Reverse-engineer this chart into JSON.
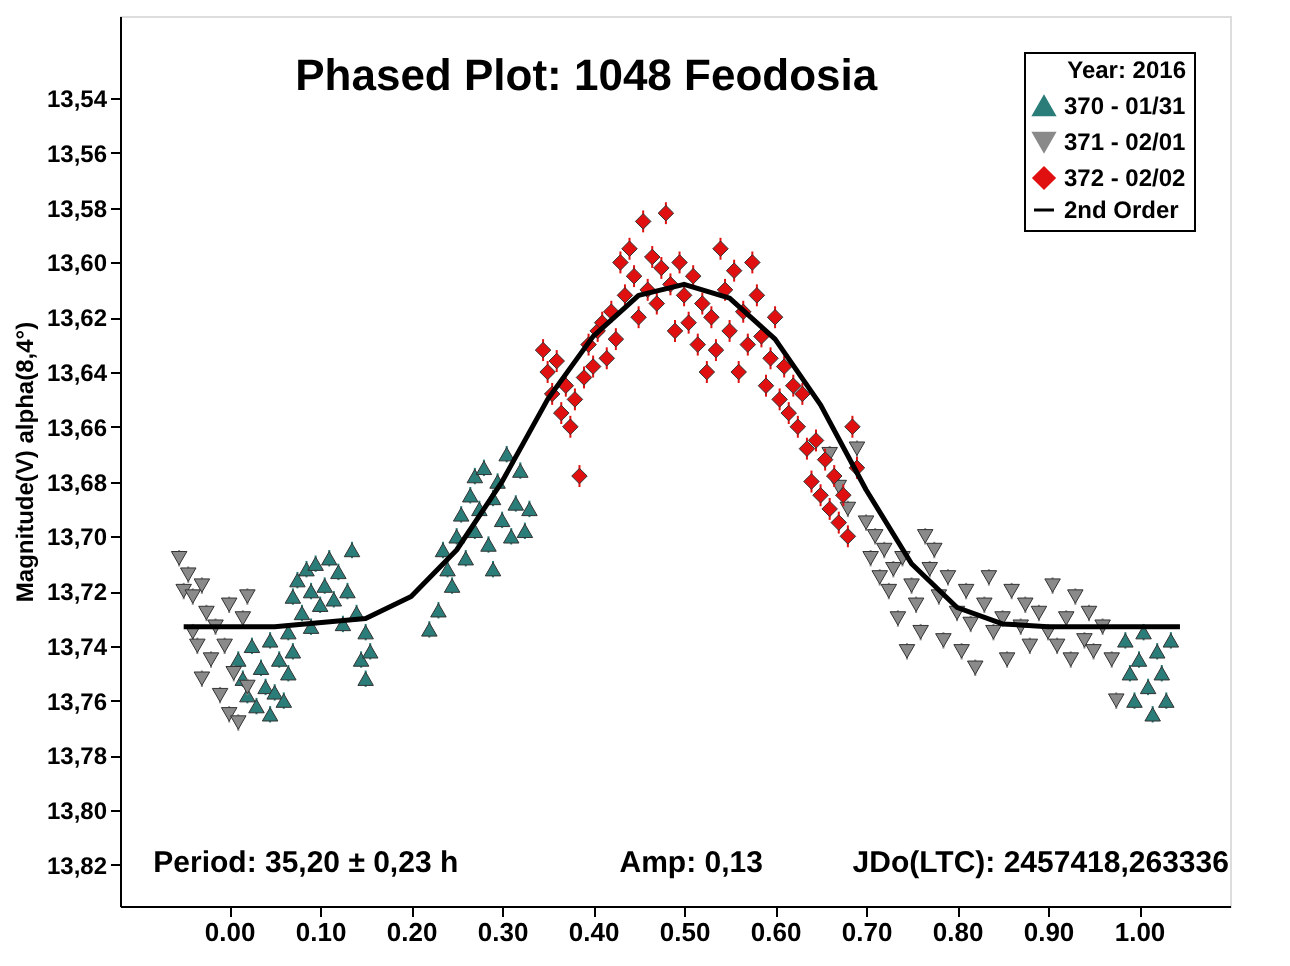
{
  "chart_data": {
    "type": "scatter",
    "title": "Phased Plot: 1048 Feodosia",
    "ylabel": "Magnitude(V) alpha(8,4°)",
    "legend_title": "Year: 2016",
    "legend": "top right",
    "grid": false,
    "tick_labels": "xy",
    "xlim": [
      -0.12,
      1.1
    ],
    "ylim": [
      13.835,
      13.51
    ],
    "xticks": [
      {
        "value": 0,
        "label": "0.00"
      },
      {
        "value": 0.1,
        "label": "0.10"
      },
      {
        "value": 0.2,
        "label": "0.20"
      },
      {
        "value": 0.3,
        "label": "0.30"
      },
      {
        "value": 0.4,
        "label": "0.40"
      },
      {
        "value": 0.5,
        "label": "0.50"
      },
      {
        "value": 0.6,
        "label": "0.60"
      },
      {
        "value": 0.7,
        "label": "0.70"
      },
      {
        "value": 0.8,
        "label": "0.80"
      },
      {
        "value": 0.9,
        "label": "0.90"
      },
      {
        "value": 1,
        "label": "1.00"
      }
    ],
    "yticks": [
      {
        "value": 13.54,
        "label": "13,54"
      },
      {
        "value": 13.56,
        "label": "13,56"
      },
      {
        "value": 13.58,
        "label": "13,58"
      },
      {
        "value": 13.6,
        "label": "13,60"
      },
      {
        "value": 13.62,
        "label": "13,62"
      },
      {
        "value": 13.64,
        "label": "13,64"
      },
      {
        "value": 13.66,
        "label": "13,66"
      },
      {
        "value": 13.68,
        "label": "13,68"
      },
      {
        "value": 13.7,
        "label": "13,70"
      },
      {
        "value": 13.72,
        "label": "13,72"
      },
      {
        "value": 13.74,
        "label": "13,74"
      },
      {
        "value": 13.76,
        "label": "13,76"
      },
      {
        "value": 13.78,
        "label": "13,78"
      },
      {
        "value": 13.8,
        "label": "13,80"
      },
      {
        "value": 13.82,
        "label": "13,82"
      }
    ],
    "annotations": [
      "Period: 35,20 ± 0,23 h",
      "Amp: 0,13",
      "JDo(LTC): 2457418,263336"
    ],
    "series": [
      {
        "name": "370 - 01/31",
        "marker": "triangle",
        "color": "#2a7d78",
        "x": [
          0.01,
          0.015,
          0.02,
          0.025,
          0.03,
          0.035,
          0.04,
          0.045,
          0.05,
          0.055,
          0.06,
          0.065,
          0.07,
          0.07,
          0.075,
          0.08,
          0.085,
          0.09,
          0.095,
          0.1,
          0.105,
          0.11,
          0.115,
          0.12,
          0.125,
          0.13,
          0.135,
          0.14,
          0.145,
          0.15,
          0.15,
          0.155,
          0.045,
          0.065,
          0.09,
          0.22,
          0.23,
          0.235,
          0.24,
          0.245,
          0.25,
          0.255,
          0.26,
          0.265,
          0.27,
          0.27,
          0.275,
          0.28,
          0.285,
          0.29,
          0.29,
          0.295,
          0.3,
          0.305,
          0.31,
          0.315,
          0.32,
          0.325,
          0.33,
          0.985,
          0.99,
          0.995,
          1.0,
          1.005,
          1.01,
          1.015,
          1.02,
          1.025,
          1.03,
          1.035
        ],
        "values": [
          13.745,
          13.752,
          13.758,
          13.74,
          13.762,
          13.748,
          13.755,
          13.738,
          13.757,
          13.745,
          13.76,
          13.735,
          13.742,
          13.722,
          13.716,
          13.728,
          13.712,
          13.72,
          13.71,
          13.725,
          13.718,
          13.708,
          13.723,
          13.713,
          13.732,
          13.72,
          13.705,
          13.728,
          13.745,
          13.735,
          13.752,
          13.742,
          13.765,
          13.75,
          13.733,
          13.734,
          13.727,
          13.705,
          13.712,
          13.718,
          13.7,
          13.692,
          13.708,
          13.685,
          13.678,
          13.698,
          13.69,
          13.675,
          13.703,
          13.686,
          13.712,
          13.68,
          13.694,
          13.67,
          13.7,
          13.688,
          13.676,
          13.698,
          13.69,
          13.738,
          13.75,
          13.76,
          13.745,
          13.735,
          13.755,
          13.765,
          13.742,
          13.75,
          13.76,
          13.738
        ],
        "errors": [
          0.003,
          0.003,
          0.003,
          0.003,
          0.003,
          0.003,
          0.003,
          0.003,
          0.003,
          0.003,
          0.003,
          0.003,
          0.003,
          0.003,
          0.003,
          0.003,
          0.003,
          0.003,
          0.003,
          0.003,
          0.003,
          0.003,
          0.003,
          0.003,
          0.003,
          0.003,
          0.003,
          0.003,
          0.003,
          0.003,
          0.003,
          0.003,
          0.003,
          0.003,
          0.003,
          0.003,
          0.003,
          0.003,
          0.003,
          0.003,
          0.003,
          0.003,
          0.003,
          0.003,
          0.003,
          0.003,
          0.003,
          0.003,
          0.003,
          0.003,
          0.003,
          0.003,
          0.003,
          0.003,
          0.003,
          0.003,
          0.003,
          0.003,
          0.003,
          0.003,
          0.003,
          0.003,
          0.003,
          0.003,
          0.003,
          0.003,
          0.003,
          0.003,
          0.003,
          0.003
        ]
      },
      {
        "name": "371 - 02/01",
        "marker": "triangle-down",
        "color": "#8a8a8a",
        "x": [
          -0.055,
          -0.05,
          -0.045,
          -0.04,
          -0.04,
          -0.035,
          -0.03,
          -0.025,
          -0.02,
          -0.015,
          -0.01,
          -0.005,
          0.0,
          0.005,
          0.01,
          0.015,
          0.02,
          -0.03,
          0.0,
          0.02,
          0.66,
          0.67,
          0.68,
          0.69,
          0.7,
          0.705,
          0.71,
          0.715,
          0.72,
          0.725,
          0.73,
          0.735,
          0.74,
          0.745,
          0.75,
          0.755,
          0.76,
          0.765,
          0.77,
          0.775,
          0.78,
          0.785,
          0.79,
          0.8,
          0.805,
          0.81,
          0.815,
          0.82,
          0.83,
          0.835,
          0.84,
          0.85,
          0.855,
          0.86,
          0.87,
          0.875,
          0.88,
          0.89,
          0.9,
          0.905,
          0.91,
          0.92,
          0.925,
          0.93,
          0.94,
          0.945,
          0.95,
          0.96,
          0.97,
          0.975
        ],
        "values": [
          13.708,
          13.72,
          13.714,
          13.735,
          13.722,
          13.74,
          13.718,
          13.728,
          13.745,
          13.733,
          13.758,
          13.74,
          13.765,
          13.75,
          13.768,
          13.73,
          13.755,
          13.752,
          13.725,
          13.722,
          13.67,
          13.682,
          13.69,
          13.668,
          13.695,
          13.708,
          13.7,
          13.715,
          13.705,
          13.72,
          13.712,
          13.73,
          13.708,
          13.742,
          13.718,
          13.725,
          13.735,
          13.7,
          13.712,
          13.705,
          13.722,
          13.738,
          13.715,
          13.728,
          13.742,
          13.72,
          13.732,
          13.748,
          13.725,
          13.715,
          13.735,
          13.73,
          13.745,
          13.72,
          13.733,
          13.725,
          13.74,
          13.728,
          13.735,
          13.718,
          13.74,
          13.73,
          13.745,
          13.722,
          13.738,
          13.728,
          13.742,
          13.733,
          13.745,
          13.76
        ],
        "errors": [
          0.003,
          0.003,
          0.003,
          0.003,
          0.003,
          0.003,
          0.003,
          0.003,
          0.003,
          0.003,
          0.003,
          0.003,
          0.003,
          0.003,
          0.003,
          0.003,
          0.003,
          0.003,
          0.003,
          0.003,
          0.003,
          0.003,
          0.003,
          0.003,
          0.003,
          0.003,
          0.003,
          0.003,
          0.003,
          0.003,
          0.003,
          0.003,
          0.003,
          0.003,
          0.003,
          0.003,
          0.003,
          0.003,
          0.003,
          0.003,
          0.003,
          0.003,
          0.003,
          0.003,
          0.003,
          0.003,
          0.003,
          0.003,
          0.003,
          0.003,
          0.003,
          0.003,
          0.003,
          0.003,
          0.003,
          0.003,
          0.003,
          0.003,
          0.003,
          0.003,
          0.003,
          0.003,
          0.003,
          0.003,
          0.003,
          0.003,
          0.003,
          0.003,
          0.003,
          0.003
        ]
      },
      {
        "name": "372 - 02/02",
        "marker": "diamond",
        "color": "#e01010",
        "x": [
          0.345,
          0.35,
          0.355,
          0.36,
          0.365,
          0.37,
          0.375,
          0.38,
          0.385,
          0.39,
          0.395,
          0.4,
          0.405,
          0.41,
          0.415,
          0.42,
          0.425,
          0.43,
          0.435,
          0.44,
          0.445,
          0.45,
          0.455,
          0.46,
          0.465,
          0.47,
          0.475,
          0.48,
          0.485,
          0.49,
          0.495,
          0.5,
          0.505,
          0.51,
          0.515,
          0.52,
          0.525,
          0.53,
          0.535,
          0.54,
          0.545,
          0.55,
          0.555,
          0.56,
          0.565,
          0.57,
          0.575,
          0.58,
          0.585,
          0.59,
          0.595,
          0.6,
          0.605,
          0.61,
          0.615,
          0.62,
          0.625,
          0.63,
          0.635,
          0.64,
          0.645,
          0.65,
          0.655,
          0.66,
          0.665,
          0.67,
          0.675,
          0.68,
          0.685,
          0.69
        ],
        "values": [
          13.632,
          13.64,
          13.648,
          13.636,
          13.655,
          13.645,
          13.66,
          13.65,
          13.678,
          13.642,
          13.63,
          13.638,
          13.625,
          13.622,
          13.635,
          13.618,
          13.628,
          13.6,
          13.612,
          13.595,
          13.605,
          13.62,
          13.585,
          13.61,
          13.598,
          13.615,
          13.602,
          13.582,
          13.608,
          13.625,
          13.6,
          13.612,
          13.622,
          13.605,
          13.63,
          13.615,
          13.64,
          13.62,
          13.632,
          13.595,
          13.61,
          13.625,
          13.603,
          13.64,
          13.618,
          13.63,
          13.6,
          13.612,
          13.627,
          13.645,
          13.635,
          13.62,
          13.65,
          13.638,
          13.655,
          13.645,
          13.66,
          13.648,
          13.668,
          13.68,
          13.665,
          13.685,
          13.672,
          13.69,
          13.678,
          13.695,
          13.685,
          13.7,
          13.66,
          13.675
        ],
        "errors": [
          0.004,
          0.004,
          0.004,
          0.004,
          0.004,
          0.004,
          0.004,
          0.004,
          0.004,
          0.004,
          0.004,
          0.004,
          0.004,
          0.004,
          0.004,
          0.004,
          0.004,
          0.004,
          0.004,
          0.004,
          0.004,
          0.004,
          0.004,
          0.004,
          0.004,
          0.004,
          0.004,
          0.004,
          0.004,
          0.004,
          0.004,
          0.004,
          0.004,
          0.004,
          0.004,
          0.004,
          0.004,
          0.004,
          0.004,
          0.004,
          0.004,
          0.004,
          0.004,
          0.004,
          0.004,
          0.004,
          0.004,
          0.004,
          0.004,
          0.004,
          0.004,
          0.004,
          0.004,
          0.004,
          0.004,
          0.004,
          0.004,
          0.004,
          0.004,
          0.004,
          0.004,
          0.004,
          0.004,
          0.004,
          0.004,
          0.004,
          0.004,
          0.004,
          0.004,
          0.004
        ]
      },
      {
        "name": "2nd Order",
        "type": "line",
        "marker": "none",
        "line_style": "solid",
        "color": "#000000",
        "x": [
          -0.05,
          0.05,
          0.15,
          0.2,
          0.25,
          0.3,
          0.35,
          0.4,
          0.45,
          0.5,
          0.55,
          0.6,
          0.65,
          0.7,
          0.75,
          0.8,
          0.85,
          0.9,
          1.045
        ],
        "values": [
          13.733,
          13.733,
          13.73,
          13.722,
          13.705,
          13.68,
          13.65,
          13.627,
          13.612,
          13.608,
          13.613,
          13.628,
          13.652,
          13.683,
          13.71,
          13.726,
          13.732,
          13.733,
          13.733
        ]
      }
    ]
  }
}
